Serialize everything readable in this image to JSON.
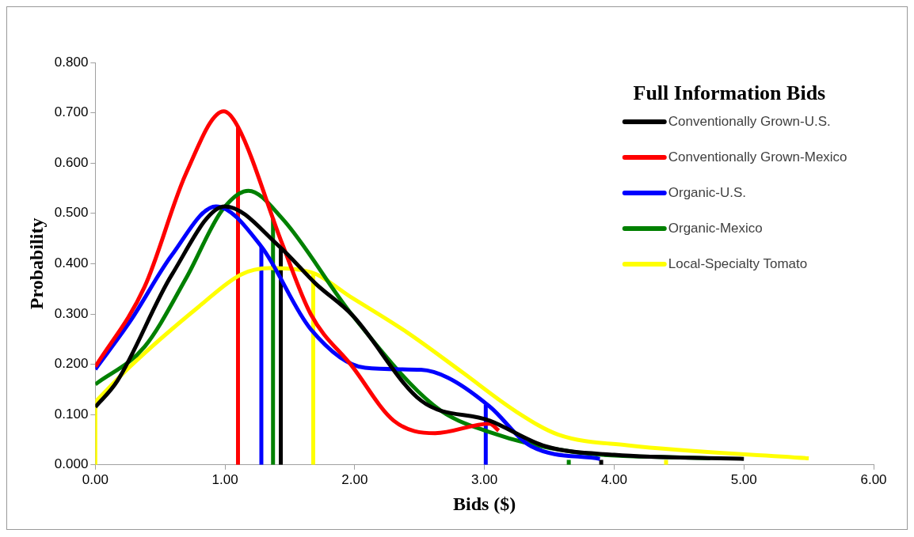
{
  "chart_data": {
    "type": "line",
    "xlabel": "Bids ($)",
    "ylabel": "Probability",
    "legend_title": "Full Information Bids",
    "legend": "top right",
    "grid": false,
    "marker": "none",
    "line_style": "solid",
    "xlim": [
      0,
      6
    ],
    "xticks": [
      {
        "value": 0,
        "label": "0.00"
      },
      {
        "value": 1,
        "label": "1.00"
      },
      {
        "value": 2,
        "label": "2.00"
      },
      {
        "value": 3,
        "label": "3.00"
      },
      {
        "value": 4,
        "label": "4.00"
      },
      {
        "value": 5,
        "label": "5.00"
      },
      {
        "value": 6,
        "label": "6.00"
      }
    ],
    "ylim": [
      0,
      0.8
    ],
    "yticks": [
      {
        "value": 0,
        "label": "0.000"
      },
      {
        "value": 0.1,
        "label": "0.100"
      },
      {
        "value": 0.2,
        "label": "0.200"
      },
      {
        "value": 0.3,
        "label": "0.300"
      },
      {
        "value": 0.4,
        "label": "0.400"
      },
      {
        "value": 0.5,
        "label": "0.500"
      },
      {
        "value": 0.6,
        "label": "0.600"
      },
      {
        "value": 0.7,
        "label": "0.700"
      },
      {
        "value": 0.8,
        "label": "0.800"
      }
    ],
    "series": [
      {
        "name": "Conventionally Grown-U.S.",
        "color": "#000000",
        "x": [
          0,
          0.17,
          0.59,
          1.0,
          1.42,
          1.7,
          1.98,
          2.51,
          3.04,
          3.47,
          4.0,
          5.0
        ],
        "values": [
          0.115,
          0.167,
          0.378,
          0.514,
          0.434,
          0.36,
          0.298,
          0.128,
          0.088,
          0.037,
          0.02,
          0.012
        ]
      },
      {
        "name": "Conventionally Grown-Mexico",
        "color": "#ff0000",
        "x": [
          0,
          0.38,
          0.7,
          0.99,
          1.1,
          1.44,
          1.66,
          1.98,
          2.3,
          2.62,
          3.04,
          3.11
        ],
        "values": [
          0.195,
          0.354,
          0.58,
          0.703,
          0.672,
          0.44,
          0.3,
          0.196,
          0.088,
          0.063,
          0.082,
          0.068
        ]
      },
      {
        "name": "Organic-U.S.",
        "color": "#0000ff",
        "x": [
          0,
          0.27,
          0.59,
          0.93,
          1.28,
          1.66,
          2.08,
          2.51,
          2.72,
          3.04,
          3.36,
          3.89
        ],
        "values": [
          0.19,
          0.286,
          0.417,
          0.514,
          0.434,
          0.27,
          0.193,
          0.189,
          0.173,
          0.116,
          0.037,
          0.012
        ]
      },
      {
        "name": "Organic-Mexico",
        "color": "#008000",
        "x": [
          0,
          0.38,
          0.7,
          0.98,
          1.18,
          1.44,
          1.98,
          2.62,
          3.04,
          3.68,
          4.74
        ],
        "values": [
          0.16,
          0.235,
          0.371,
          0.507,
          0.545,
          0.49,
          0.298,
          0.116,
          0.065,
          0.026,
          0.013
        ]
      },
      {
        "name": "Local-Specialty Tomato",
        "color": "#ffff00",
        "x": [
          0,
          0.27,
          0.8,
          1.12,
          1.34,
          1.66,
          1.98,
          2.4,
          2.83,
          3.25,
          3.57,
          4.1,
          5.5
        ],
        "values": [
          0.125,
          0.196,
          0.315,
          0.378,
          0.391,
          0.383,
          0.332,
          0.264,
          0.184,
          0.105,
          0.06,
          0.039,
          0.013
        ]
      },
      {
        "color": "#ff0000",
        "x": [
          1.1,
          1.1
        ],
        "values": [
          0,
          0.672
        ]
      },
      {
        "color": "#0000ff",
        "x": [
          1.28,
          1.28
        ],
        "values": [
          0,
          0.434
        ]
      },
      {
        "color": "#0000ff",
        "x": [
          3.01,
          3.01
        ],
        "values": [
          0,
          0.12
        ]
      },
      {
        "color": "#008000",
        "x": [
          1.37,
          1.37
        ],
        "values": [
          0,
          0.49
        ]
      },
      {
        "color": "#008000",
        "x": [
          3.65,
          3.65
        ],
        "values": [
          0,
          0.01
        ]
      },
      {
        "color": "#000000",
        "x": [
          1.43,
          1.43
        ],
        "values": [
          0,
          0.43
        ]
      },
      {
        "color": "#000000",
        "x": [
          3.9,
          3.9
        ],
        "values": [
          0,
          0.01
        ]
      },
      {
        "color": "#ffff00",
        "x": [
          0,
          0
        ],
        "values": [
          0,
          0.125
        ]
      },
      {
        "color": "#ffff00",
        "x": [
          1.68,
          1.68
        ],
        "values": [
          0,
          0.38
        ]
      },
      {
        "color": "#ffff00",
        "x": [
          4.4,
          4.4
        ],
        "values": [
          0,
          0.01
        ]
      }
    ]
  }
}
